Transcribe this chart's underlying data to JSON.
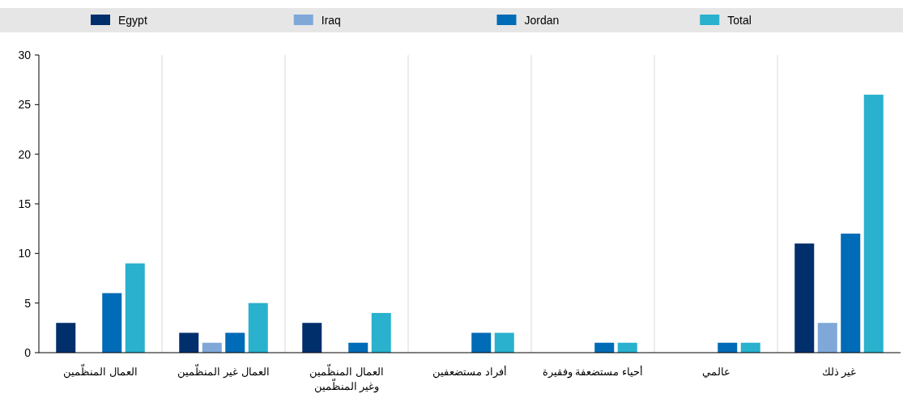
{
  "chart_data": {
    "type": "bar",
    "categories": [
      "العمال المنظّمين",
      "العمال غير المنظّمين",
      "العمال المنظّمين\nوغير المنظّمين",
      "أفراد مستضعفين",
      "أحياء مستضعفة وفقيرة",
      "عالمي",
      "غير ذلك"
    ],
    "series": [
      {
        "name": "Egypt",
        "color": "#002f6c",
        "values": [
          3,
          2,
          3,
          0,
          0,
          0,
          11
        ]
      },
      {
        "name": "Iraq",
        "color": "#7fa8d9",
        "values": [
          0,
          1,
          0,
          0,
          0,
          0,
          3
        ]
      },
      {
        "name": "Jordan",
        "color": "#006bb6",
        "values": [
          6,
          2,
          1,
          2,
          1,
          1,
          12
        ]
      },
      {
        "name": "Total",
        "color": "#29b1cd",
        "values": [
          9,
          5,
          4,
          2,
          1,
          1,
          26
        ]
      }
    ],
    "ylim": [
      0,
      30
    ],
    "yticks": [
      0,
      5,
      10,
      15,
      20,
      25,
      30
    ],
    "grid": "x",
    "legend": "top"
  }
}
